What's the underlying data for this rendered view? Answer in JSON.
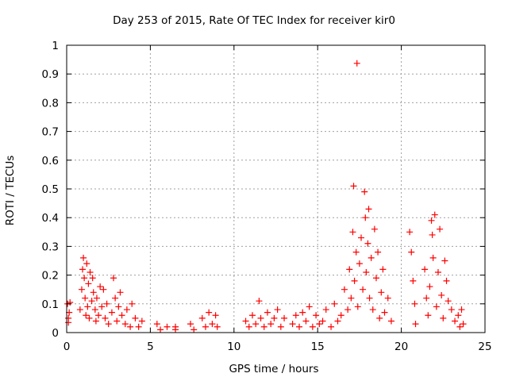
{
  "chart_data": {
    "type": "scatter",
    "title": "Day 253 of 2015, Rate Of TEC Index for receiver kir0",
    "xlabel": "GPS time / hours",
    "ylabel": "ROTI / TECUs",
    "xlim": [
      0,
      25
    ],
    "ylim": [
      0,
      1
    ],
    "xticks": [
      "0",
      "5",
      "10",
      "15",
      "20",
      "25"
    ],
    "yticks": [
      "0",
      "0.1",
      "0.2",
      "0.3",
      "0.4",
      "0.5",
      "0.6",
      "0.7",
      "0.8",
      "0.9",
      "1"
    ],
    "grid": true,
    "marker": "+",
    "marker_color": "#ff0000",
    "series": [
      {
        "points": [
          [
            0.05,
            0.1
          ],
          [
            0.1,
            0.05
          ],
          [
            0.15,
            0.07
          ],
          [
            0.1,
            0.035
          ],
          [
            0.2,
            0.105
          ],
          [
            0.8,
            0.08
          ],
          [
            0.9,
            0.15
          ],
          [
            0.95,
            0.22
          ],
          [
            1.0,
            0.26
          ],
          [
            1.05,
            0.19
          ],
          [
            1.1,
            0.12
          ],
          [
            1.15,
            0.06
          ],
          [
            1.2,
            0.24
          ],
          [
            1.25,
            0.09
          ],
          [
            1.3,
            0.17
          ],
          [
            1.35,
            0.05
          ],
          [
            1.4,
            0.21
          ],
          [
            1.5,
            0.11
          ],
          [
            1.55,
            0.19
          ],
          [
            1.6,
            0.14
          ],
          [
            1.7,
            0.08
          ],
          [
            1.75,
            0.04
          ],
          [
            1.8,
            0.12
          ],
          [
            1.9,
            0.06
          ],
          [
            2.0,
            0.16
          ],
          [
            2.1,
            0.09
          ],
          [
            2.2,
            0.15
          ],
          [
            2.3,
            0.05
          ],
          [
            2.4,
            0.1
          ],
          [
            2.5,
            0.03
          ],
          [
            2.7,
            0.07
          ],
          [
            2.8,
            0.19
          ],
          [
            2.9,
            0.12
          ],
          [
            3.0,
            0.04
          ],
          [
            3.1,
            0.09
          ],
          [
            3.2,
            0.14
          ],
          [
            3.3,
            0.06
          ],
          [
            3.5,
            0.03
          ],
          [
            3.6,
            0.08
          ],
          [
            3.8,
            0.02
          ],
          [
            3.9,
            0.1
          ],
          [
            4.1,
            0.05
          ],
          [
            4.3,
            0.02
          ],
          [
            4.5,
            0.04
          ],
          [
            5.4,
            0.03
          ],
          [
            5.6,
            0.01
          ],
          [
            6.0,
            0.02
          ],
          [
            6.5,
            0.02
          ],
          [
            6.5,
            0.01
          ],
          [
            7.4,
            0.03
          ],
          [
            7.6,
            0.01
          ],
          [
            8.1,
            0.05
          ],
          [
            8.3,
            0.02
          ],
          [
            8.5,
            0.07
          ],
          [
            8.7,
            0.03
          ],
          [
            8.9,
            0.06
          ],
          [
            9.0,
            0.02
          ],
          [
            10.7,
            0.04
          ],
          [
            10.9,
            0.02
          ],
          [
            11.1,
            0.06
          ],
          [
            11.3,
            0.03
          ],
          [
            11.5,
            0.11
          ],
          [
            11.6,
            0.05
          ],
          [
            11.8,
            0.02
          ],
          [
            12.0,
            0.07
          ],
          [
            12.2,
            0.03
          ],
          [
            12.4,
            0.05
          ],
          [
            12.6,
            0.08
          ],
          [
            12.8,
            0.02
          ],
          [
            13.0,
            0.05
          ],
          [
            13.5,
            0.03
          ],
          [
            13.7,
            0.06
          ],
          [
            13.9,
            0.02
          ],
          [
            14.1,
            0.07
          ],
          [
            14.3,
            0.04
          ],
          [
            14.5,
            0.09
          ],
          [
            14.7,
            0.02
          ],
          [
            14.9,
            0.06
          ],
          [
            15.1,
            0.03
          ],
          [
            15.3,
            0.04
          ],
          [
            15.5,
            0.08
          ],
          [
            15.8,
            0.02
          ],
          [
            16.0,
            0.1
          ],
          [
            16.2,
            0.04
          ],
          [
            16.4,
            0.06
          ],
          [
            16.6,
            0.15
          ],
          [
            16.8,
            0.08
          ],
          [
            16.9,
            0.22
          ],
          [
            17.0,
            0.12
          ],
          [
            17.1,
            0.35
          ],
          [
            17.15,
            0.51
          ],
          [
            17.2,
            0.18
          ],
          [
            17.3,
            0.28
          ],
          [
            17.35,
            0.937
          ],
          [
            17.4,
            0.09
          ],
          [
            17.5,
            0.24
          ],
          [
            17.6,
            0.33
          ],
          [
            17.7,
            0.15
          ],
          [
            17.8,
            0.49
          ],
          [
            17.85,
            0.4
          ],
          [
            17.9,
            0.21
          ],
          [
            18.0,
            0.31
          ],
          [
            18.05,
            0.43
          ],
          [
            18.1,
            0.12
          ],
          [
            18.2,
            0.26
          ],
          [
            18.3,
            0.08
          ],
          [
            18.4,
            0.36
          ],
          [
            18.5,
            0.19
          ],
          [
            18.6,
            0.28
          ],
          [
            18.7,
            0.05
          ],
          [
            18.8,
            0.14
          ],
          [
            18.9,
            0.22
          ],
          [
            19.0,
            0.07
          ],
          [
            19.2,
            0.12
          ],
          [
            19.4,
            0.04
          ],
          [
            20.5,
            0.35
          ],
          [
            20.6,
            0.28
          ],
          [
            20.7,
            0.18
          ],
          [
            20.8,
            0.1
          ],
          [
            20.85,
            0.03
          ],
          [
            21.4,
            0.22
          ],
          [
            21.5,
            0.12
          ],
          [
            21.6,
            0.06
          ],
          [
            21.7,
            0.16
          ],
          [
            21.8,
            0.39
          ],
          [
            21.85,
            0.34
          ],
          [
            21.9,
            0.26
          ],
          [
            22.0,
            0.41
          ],
          [
            22.1,
            0.09
          ],
          [
            22.2,
            0.21
          ],
          [
            22.3,
            0.36
          ],
          [
            22.4,
            0.13
          ],
          [
            22.5,
            0.05
          ],
          [
            22.6,
            0.25
          ],
          [
            22.7,
            0.18
          ],
          [
            22.8,
            0.11
          ],
          [
            23.0,
            0.08
          ],
          [
            23.2,
            0.04
          ],
          [
            23.4,
            0.06
          ],
          [
            23.5,
            0.02
          ],
          [
            23.6,
            0.08
          ],
          [
            23.7,
            0.03
          ]
        ]
      }
    ]
  }
}
